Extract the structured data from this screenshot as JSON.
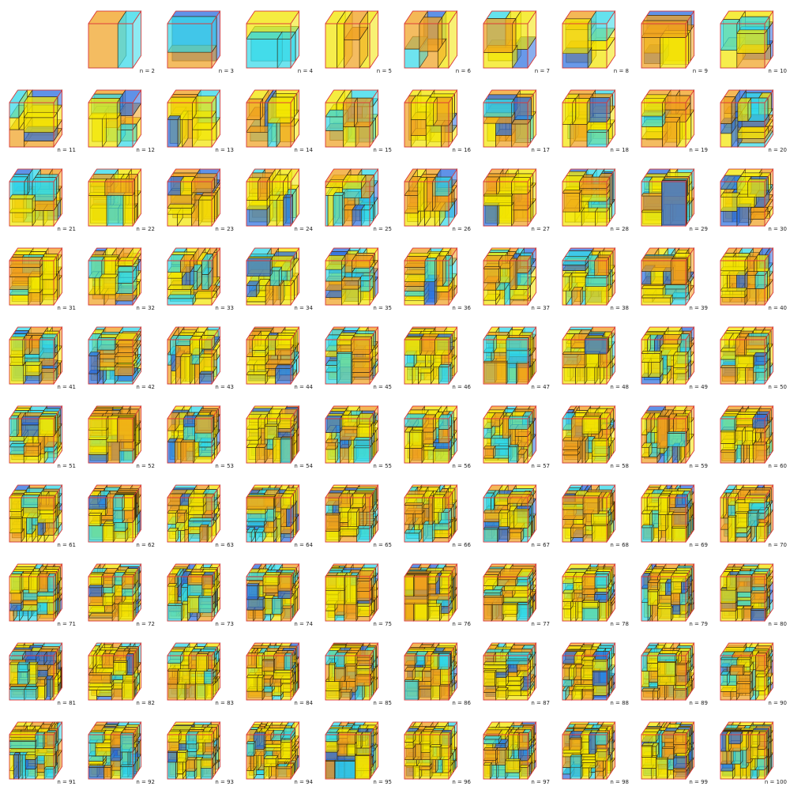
{
  "figure": {
    "columns": 10,
    "rows": 10,
    "panels": [
      {
        "label": ""
      },
      {
        "label": "n = 2"
      },
      {
        "label": "n = 3"
      },
      {
        "label": "n = 4"
      },
      {
        "label": "n = 5"
      },
      {
        "label": "n = 6"
      },
      {
        "label": "n = 7"
      },
      {
        "label": "n = 8"
      },
      {
        "label": "n = 9"
      },
      {
        "label": "n = 10"
      },
      {
        "label": "n = 11"
      },
      {
        "label": "n = 12"
      },
      {
        "label": "n = 13"
      },
      {
        "label": "n = 14"
      },
      {
        "label": "n = 15"
      },
      {
        "label": "n = 16"
      },
      {
        "label": "n = 17"
      },
      {
        "label": "n = 18"
      },
      {
        "label": "n = 19"
      },
      {
        "label": "n = 20"
      },
      {
        "label": "n = 21"
      },
      {
        "label": "n = 22"
      },
      {
        "label": "n = 23"
      },
      {
        "label": "n = 24"
      },
      {
        "label": "n = 25"
      },
      {
        "label": "n = 26"
      },
      {
        "label": "n = 27"
      },
      {
        "label": "n = 28"
      },
      {
        "label": "n = 29"
      },
      {
        "label": "n = 30"
      },
      {
        "label": "n = 31"
      },
      {
        "label": "n = 32"
      },
      {
        "label": "n = 33"
      },
      {
        "label": "n = 34"
      },
      {
        "label": "n = 35"
      },
      {
        "label": "n = 36"
      },
      {
        "label": "n = 37"
      },
      {
        "label": "n = 38"
      },
      {
        "label": "n = 39"
      },
      {
        "label": "n = 40"
      },
      {
        "label": "n = 41"
      },
      {
        "label": "n = 42"
      },
      {
        "label": "n = 43"
      },
      {
        "label": "n = 44"
      },
      {
        "label": "n = 45"
      },
      {
        "label": "n = 46"
      },
      {
        "label": "n = 47"
      },
      {
        "label": "n = 48"
      },
      {
        "label": "n = 49"
      },
      {
        "label": "n = 50"
      },
      {
        "label": "n = 51"
      },
      {
        "label": "n = 52"
      },
      {
        "label": "n = 53"
      },
      {
        "label": "n = 54"
      },
      {
        "label": "n = 55"
      },
      {
        "label": "n = 56"
      },
      {
        "label": "n = 57"
      },
      {
        "label": "n = 58"
      },
      {
        "label": "n = 59"
      },
      {
        "label": "n = 60"
      },
      {
        "label": "n = 61"
      },
      {
        "label": "n = 62"
      },
      {
        "label": "n = 63"
      },
      {
        "label": "n = 64"
      },
      {
        "label": "n = 65"
      },
      {
        "label": "n = 66"
      },
      {
        "label": "n = 67"
      },
      {
        "label": "n = 68"
      },
      {
        "label": "n = 69"
      },
      {
        "label": "n = 70"
      },
      {
        "label": "n = 71"
      },
      {
        "label": "n = 72"
      },
      {
        "label": "n = 73"
      },
      {
        "label": "n = 74"
      },
      {
        "label": "n = 75"
      },
      {
        "label": "n = 76"
      },
      {
        "label": "n = 77"
      },
      {
        "label": "n = 78"
      },
      {
        "label": "n = 79"
      },
      {
        "label": "n = 80"
      },
      {
        "label": "n = 81"
      },
      {
        "label": "n = 82"
      },
      {
        "label": "n = 83"
      },
      {
        "label": "n = 84"
      },
      {
        "label": "n = 85"
      },
      {
        "label": "n = 86"
      },
      {
        "label": "n = 87"
      },
      {
        "label": "n = 88"
      },
      {
        "label": "n = 89"
      },
      {
        "label": "n = 90"
      },
      {
        "label": "n = 91"
      },
      {
        "label": "n = 92"
      },
      {
        "label": "n = 93"
      },
      {
        "label": "n = 94"
      },
      {
        "label": "n = 95"
      },
      {
        "label": "n = 96"
      },
      {
        "label": "n = 97"
      },
      {
        "label": "n = 98"
      },
      {
        "label": "n = 99"
      },
      {
        "label": "n = 100"
      }
    ]
  },
  "colors": {
    "yellow": "#f2e600",
    "orange": "#f0a01e",
    "cyan": "#30d8e8",
    "blue": "#2a6ee0",
    "purple": "#7a2a9a",
    "edge": "#e8383c",
    "outline": "#3a2a10"
  }
}
